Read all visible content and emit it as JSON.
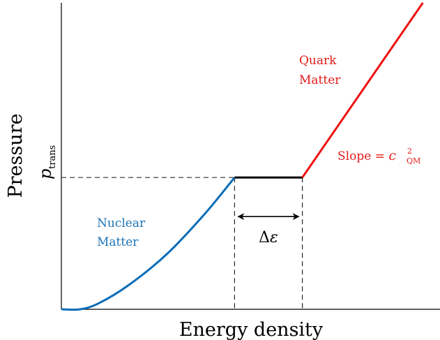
{
  "chart_data": {
    "type": "line",
    "xlabel": "Energy density",
    "ylabel": "Pressure",
    "ytick": {
      "main": "p",
      "sub": "trans"
    },
    "grid": false,
    "series": [
      {
        "segment": "nuclear",
        "color": "#0a6db8",
        "points": [
          [
            0.0,
            0.0
          ],
          [
            0.05,
            0.0
          ],
          [
            0.1,
            0.02
          ],
          [
            0.18,
            0.08
          ],
          [
            0.28,
            0.18
          ],
          [
            0.38,
            0.31
          ],
          [
            0.46,
            0.43
          ]
        ]
      },
      {
        "segment": "transition",
        "color": "#000000",
        "points": [
          [
            0.46,
            0.43
          ],
          [
            0.64,
            0.43
          ]
        ]
      },
      {
        "segment": "quark",
        "color": "#ee1111",
        "points": [
          [
            0.64,
            0.43
          ],
          [
            0.96,
            1.0
          ]
        ]
      }
    ],
    "annotations": {
      "nuclear": [
        "Nuclear",
        "Matter"
      ],
      "quark": [
        "Quark",
        "Matter"
      ],
      "slope_prefix": "Slope = ",
      "slope_var": "c",
      "slope_sup": "2",
      "slope_sub": "QM",
      "delta": "Δ",
      "epsilon": "ε"
    }
  }
}
